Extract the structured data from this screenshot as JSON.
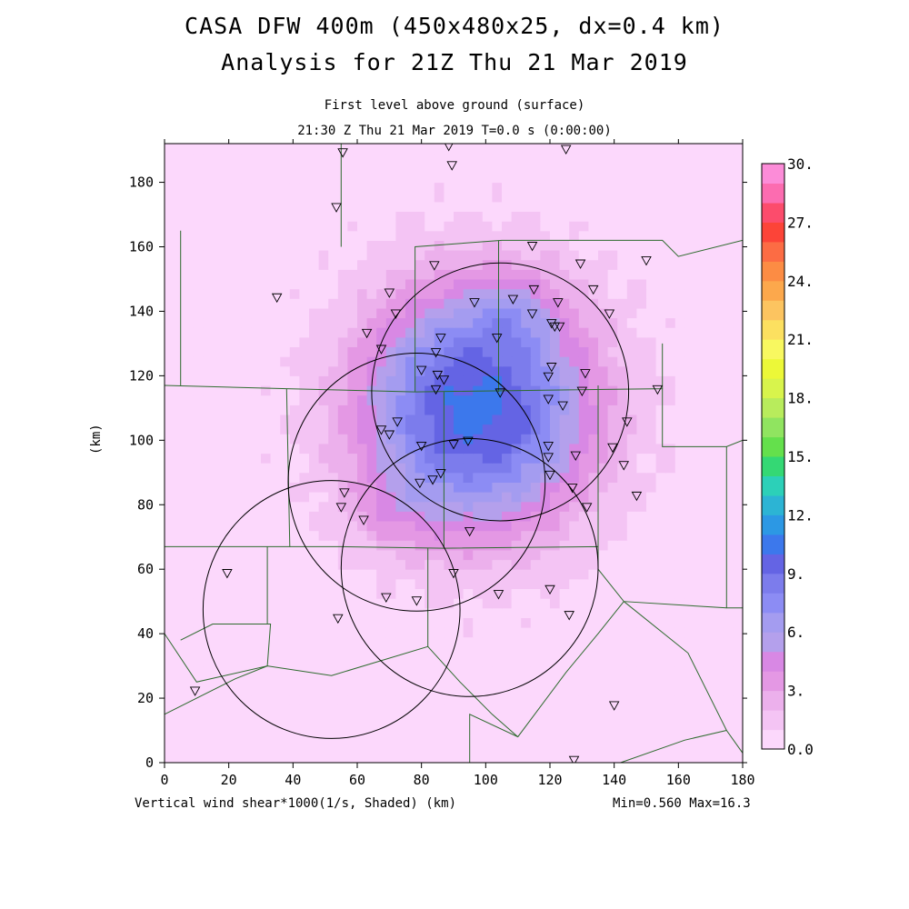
{
  "title_line1": "CASA DFW 400m (450x480x25, dx=0.4 km)",
  "title_line2": "Analysis for 21Z Thu 21 Mar 2019",
  "subtitle_level": "First level above ground (surface)",
  "subtitle_time": "21:30 Z Thu 21 Mar 2019    T=0.0 s (0:00:00)",
  "xlabel": "Vertical wind shear*1000(1/s, Shaded)  (km)",
  "ylabel": "(km)",
  "minmax": "Min=0.560 Max=16.3",
  "colors": {
    "border": "#2e6b2e",
    "radar_circle": "#000000"
  },
  "chart_data": {
    "type": "heatmap",
    "title": "CASA DFW 400m (450x480x25, dx=0.4 km)",
    "xlabel": "(km)",
    "ylabel": "(km)",
    "xlim": [
      0,
      180
    ],
    "ylim": [
      0,
      192
    ],
    "x_ticks": [
      "0",
      "20",
      "40",
      "60",
      "80",
      "100",
      "120",
      "140",
      "160",
      "180"
    ],
    "y_ticks": [
      "0",
      "20",
      "40",
      "60",
      "80",
      "100",
      "120",
      "140",
      "160",
      "180"
    ],
    "colorbar": {
      "min": 0.0,
      "max": 30.0,
      "step": 1.5,
      "labels": [
        "0.0",
        "3.",
        "6.",
        "9.",
        "12.",
        "15.",
        "18.",
        "21.",
        "24.",
        "27.",
        "30."
      ],
      "colors": [
        "#fcd8fc",
        "#f4c4f4",
        "#ecb0ec",
        "#e498e4",
        "#d888e4",
        "#b4a0ec",
        "#a49cf0",
        "#8c8cf4",
        "#7c7cec",
        "#6464e4",
        "#3c78ec",
        "#2c98e4",
        "#2cb4d4",
        "#2cd0b8",
        "#34d874",
        "#64e04c",
        "#90e460",
        "#b8ec5c",
        "#d8f44c",
        "#ecf838",
        "#f8f860",
        "#fce060",
        "#fcc460",
        "#fca84c",
        "#fc8c44",
        "#fc6c44",
        "#fc4438",
        "#fc4c6c",
        "#fc6cb0",
        "#fc8cd8"
      ]
    },
    "field": {
      "centers": [
        [
          97,
          110,
          24,
          26,
          15.0
        ],
        [
          110,
          140,
          12,
          10,
          3.0
        ],
        [
          72,
          78,
          14,
          12,
          2.0
        ]
      ],
      "min": 0.56,
      "max": 16.3
    },
    "radar_circles": [
      {
        "cx": 104.5,
        "cy": 115.0,
        "r": 40.0
      },
      {
        "cx": 78.5,
        "cy": 87.0,
        "r": 40.0
      },
      {
        "cx": 95.0,
        "cy": 60.5,
        "r": 40.0
      },
      {
        "cx": 52.0,
        "cy": 47.5,
        "r": 40.0
      }
    ],
    "stations": [
      [
        88.5,
        191
      ],
      [
        55.5,
        189
      ],
      [
        125,
        190
      ],
      [
        89.5,
        185
      ],
      [
        53.5,
        172
      ],
      [
        114.5,
        160
      ],
      [
        129.5,
        154.5
      ],
      [
        150,
        155.5
      ],
      [
        84,
        154
      ],
      [
        35,
        144
      ],
      [
        70,
        145.5
      ],
      [
        133.5,
        146.5
      ],
      [
        108.5,
        143.5
      ],
      [
        115,
        146.5
      ],
      [
        96.5,
        142.5
      ],
      [
        122.5,
        142.5
      ],
      [
        72,
        139
      ],
      [
        114.5,
        139
      ],
      [
        138.5,
        139
      ],
      [
        120.5,
        136
      ],
      [
        123,
        135
      ],
      [
        121.5,
        135
      ],
      [
        63,
        133
      ],
      [
        86,
        131.5
      ],
      [
        103.5,
        131.5
      ],
      [
        67.5,
        128
      ],
      [
        84.5,
        127
      ],
      [
        80,
        121.5
      ],
      [
        120.5,
        122.5
      ],
      [
        85,
        120
      ],
      [
        119.5,
        119.5
      ],
      [
        131,
        120.5
      ],
      [
        87,
        118.5
      ],
      [
        153.5,
        115.5
      ],
      [
        84.5,
        115.5
      ],
      [
        104.5,
        114.5
      ],
      [
        130,
        115
      ],
      [
        119.5,
        112.5
      ],
      [
        124,
        110.5
      ],
      [
        72.5,
        105.5
      ],
      [
        144,
        105.5
      ],
      [
        67.5,
        103
      ],
      [
        70,
        101.5
      ],
      [
        94.5,
        99.5
      ],
      [
        80,
        98
      ],
      [
        90,
        98.5
      ],
      [
        119.5,
        98
      ],
      [
        139.5,
        97.5
      ],
      [
        119.5,
        94.5
      ],
      [
        128,
        95
      ],
      [
        143,
        92
      ],
      [
        120,
        89
      ],
      [
        86,
        89.5
      ],
      [
        83.5,
        87.5
      ],
      [
        79.5,
        86.5
      ],
      [
        56,
        83.5
      ],
      [
        127,
        85
      ],
      [
        147,
        82.5
      ],
      [
        55,
        79
      ],
      [
        131.5,
        79
      ],
      [
        62,
        75
      ],
      [
        95,
        71.5
      ],
      [
        19.5,
        58.5
      ],
      [
        90,
        58.5
      ],
      [
        120,
        53.5
      ],
      [
        104,
        52
      ],
      [
        69,
        51
      ],
      [
        78.5,
        50
      ],
      [
        126,
        45.5
      ],
      [
        54,
        44.5
      ],
      [
        9.5,
        22
      ],
      [
        140,
        17.5
      ],
      [
        127.5,
        0.5
      ]
    ]
  }
}
